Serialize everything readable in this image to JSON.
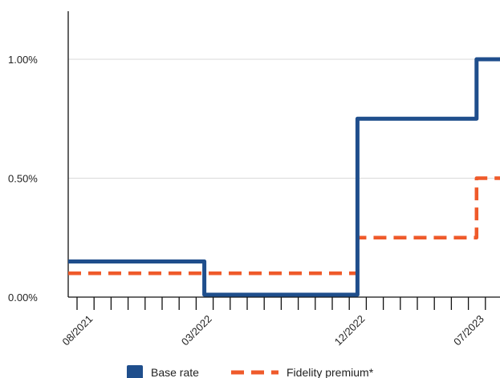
{
  "chart_data": {
    "type": "line",
    "step": true,
    "title": "",
    "xlabel": "",
    "ylabel": "",
    "ylim": [
      0,
      1.2
    ],
    "y_ticks": [
      {
        "value": 0,
        "label": "0.00%"
      },
      {
        "value": 0.5,
        "label": "0.50%"
      },
      {
        "value": 1.0,
        "label": "1.00%"
      }
    ],
    "x_domain": [
      "2021-07",
      "2023-08"
    ],
    "x_tick_count": 26,
    "x_tick_labels": [
      {
        "month": "2021-08",
        "label": "08/2021"
      },
      {
        "month": "2022-03",
        "label": "03/2022"
      },
      {
        "month": "2022-12",
        "label": "12/2022"
      },
      {
        "month": "2023-07",
        "label": "07/2023"
      }
    ],
    "grid": true,
    "legend_position": "bottom",
    "series": [
      {
        "name": "Base rate",
        "color": "#1f4e8c",
        "style": "solid",
        "points": [
          {
            "x": "2021-07",
            "y": 0.15
          },
          {
            "x": "2022-03",
            "y": 0.01
          },
          {
            "x": "2022-12",
            "y": 0.75
          },
          {
            "x": "2023-07",
            "y": 1.0
          },
          {
            "x": "2023-08",
            "y": 1.0
          }
        ]
      },
      {
        "name": "Fidelity premium*",
        "color": "#ef5a2a",
        "style": "dashed",
        "points": [
          {
            "x": "2021-07",
            "y": 0.1
          },
          {
            "x": "2022-12",
            "y": 0.25
          },
          {
            "x": "2023-07",
            "y": 0.5
          },
          {
            "x": "2023-08",
            "y": 0.5
          }
        ]
      }
    ]
  }
}
